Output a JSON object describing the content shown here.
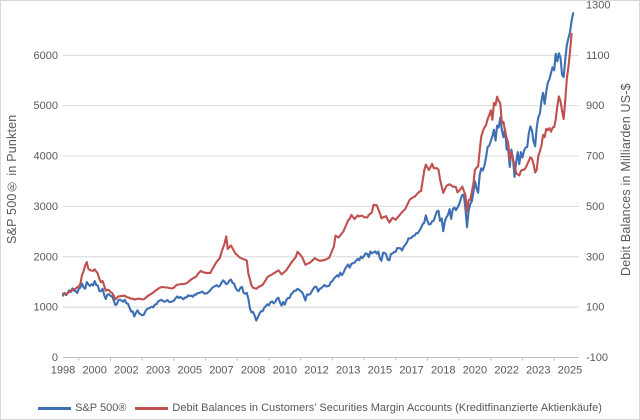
{
  "chart_data": {
    "type": "line",
    "title": "",
    "grid": true,
    "legend_position": "bottom",
    "x_axis": {
      "labels": [
        "1998",
        "2000",
        "2002",
        "2003",
        "2005",
        "2007",
        "2008",
        "2010",
        "2012",
        "2013",
        "2015",
        "2017",
        "2018",
        "2020",
        "2022",
        "2023",
        "2025"
      ],
      "range_years": [
        1998.96,
        2026.1
      ],
      "label_interval_months": 20
    },
    "y_left": {
      "label": "S&P 500® in Punkten",
      "ticks": [
        0,
        1000,
        2000,
        3000,
        4000,
        5000,
        6000
      ],
      "range": [
        0,
        7000
      ]
    },
    "y_right": {
      "label": "Debit Balances in Milliarden US-$",
      "ticks": [
        -100,
        100,
        300,
        500,
        700,
        900,
        1100,
        1300
      ],
      "range": [
        -100,
        1300
      ]
    },
    "series": [
      {
        "name": "S&P 500®",
        "slug": "sp500",
        "axis": "left",
        "color": "#3e6fb5",
        "start_year": 1998.96,
        "interval_months": 1,
        "values": [
          1229,
          1280,
          1238,
          1286,
          1335,
          1302,
          1373,
          1329,
          1320,
          1283,
          1363,
          1389,
          1469,
          1394,
          1366,
          1499,
          1452,
          1421,
          1455,
          1431,
          1518,
          1437,
          1429,
          1315,
          1320,
          1366,
          1240,
          1160,
          1249,
          1256,
          1224,
          1211,
          1134,
          1041,
          1060,
          1139,
          1148,
          1130,
          1107,
          1147,
          1077,
          1067,
          990,
          912,
          916,
          815,
          886,
          936,
          880,
          856,
          841,
          848,
          917,
          964,
          975,
          990,
          1008,
          996,
          1051,
          1058,
          1112,
          1131,
          1145,
          1126,
          1107,
          1121,
          1141,
          1102,
          1104,
          1114,
          1130,
          1174,
          1212,
          1181,
          1204,
          1181,
          1157,
          1192,
          1191,
          1234,
          1220,
          1229,
          1207,
          1249,
          1248,
          1280,
          1281,
          1295,
          1311,
          1270,
          1270,
          1277,
          1304,
          1336,
          1378,
          1401,
          1418,
          1438,
          1407,
          1421,
          1482,
          1531,
          1503,
          1455,
          1474,
          1527,
          1549,
          1481,
          1468,
          1379,
          1331,
          1323,
          1386,
          1400,
          1280,
          1267,
          1283,
          1166,
          969,
          896,
          903,
          826,
          735,
          798,
          873,
          919,
          919,
          987,
          1021,
          1057,
          1036,
          1096,
          1115,
          1074,
          1104,
          1169,
          1187,
          1089,
          1031,
          1102,
          1049,
          1141,
          1183,
          1181,
          1258,
          1286,
          1327,
          1326,
          1364,
          1345,
          1321,
          1292,
          1219,
          1131,
          1253,
          1247,
          1258,
          1312,
          1366,
          1408,
          1398,
          1310,
          1362,
          1379,
          1407,
          1441,
          1412,
          1416,
          1426,
          1498,
          1515,
          1569,
          1598,
          1631,
          1606,
          1686,
          1633,
          1682,
          1757,
          1806,
          1848,
          1783,
          1859,
          1872,
          1884,
          1924,
          1960,
          1931,
          2003,
          1972,
          2018,
          2068,
          2059,
          1995,
          2105,
          2068,
          2086,
          2107,
          2063,
          2104,
          1972,
          1920,
          2079,
          2080,
          2044,
          1940,
          1932,
          2060,
          2065,
          2097,
          2099,
          2174,
          2171,
          2168,
          2126,
          2199,
          2239,
          2279,
          2364,
          2363,
          2384,
          2412,
          2423,
          2470,
          2472,
          2519,
          2575,
          2648,
          2674,
          2824,
          2714,
          2641,
          2648,
          2705,
          2718,
          2816,
          2902,
          2914,
          2712,
          2760,
          2507,
          2704,
          2784,
          2834,
          2946,
          2752,
          2942,
          2980,
          2926,
          2977,
          3038,
          3141,
          3231,
          3226,
          2954,
          2585,
          2912,
          3044,
          3100,
          3271,
          3500,
          3363,
          3270,
          3622,
          3756,
          3714,
          3811,
          3973,
          4181,
          4204,
          4298,
          4395,
          4523,
          4308,
          4605,
          4567,
          4766,
          4516,
          4374,
          4530,
          4132,
          4132,
          3785,
          4130,
          3955,
          3586,
          3872,
          4080,
          3840,
          4077,
          3970,
          4109,
          4169,
          4180,
          4450,
          4589,
          4508,
          4288,
          4194,
          4568,
          4770,
          4846,
          5096,
          5254,
          5036,
          5278,
          5460,
          5522,
          5648,
          5762,
          5705,
          6032,
          5882,
          6041,
          5955,
          5612,
          5569,
          5912,
          6205,
          6339,
          6460,
          6688,
          6840
        ]
      },
      {
        "name": "Debit Balances in Customers' Securities Margin Accounts (Kreditfinanzierte Aktienkäufe)",
        "slug": "debit-balances",
        "axis": "right",
        "color": "#c0504d",
        "start_year": 1998.96,
        "interval_months": 1,
        "values": [
          154,
          153,
          151,
          156,
          161,
          164,
          168,
          171,
          174,
          179,
          182,
          194,
          228,
          243,
          265,
          279,
          252,
          248,
          245,
          244,
          250,
          241,
          233,
          211,
          199,
          204,
          186,
          165,
          169,
          168,
          160,
          156,
          146,
          131,
          136,
          143,
          143,
          145,
          144,
          146,
          140,
          139,
          137,
          133,
          134,
          130,
          132,
          133,
          134,
          132,
          131,
          131,
          136,
          142,
          146,
          150,
          154,
          158,
          164,
          168,
          173,
          177,
          179,
          180,
          179,
          178,
          178,
          176,
          175,
          174,
          178,
          184,
          189,
          190,
          191,
          192,
          191,
          193,
          195,
          200,
          205,
          211,
          214,
          218,
          221,
          230,
          238,
          244,
          240,
          238,
          236,
          236,
          236,
          236,
          248,
          259,
          270,
          280,
          288,
          295,
          318,
          336,
          353,
          381,
          331,
          338,
          345,
          334,
          322,
          312,
          306,
          300,
          295,
          293,
          290,
          288,
          285,
          233,
          210,
          186,
          177,
          175,
          173,
          178,
          182,
          185,
          188,
          198,
          208,
          219,
          223,
          227,
          230,
          234,
          238,
          242,
          246,
          238,
          230,
          236,
          241,
          247,
          257,
          266,
          276,
          284,
          292,
          300,
          320,
          313,
          306,
          298,
          283,
          268,
          272,
          274,
          277,
          283,
          289,
          295,
          290,
          287,
          284,
          285,
          286,
          287,
          290,
          293,
          296,
          311,
          326,
          342,
          384,
          380,
          377,
          385,
          393,
          401,
          416,
          430,
          445,
          451,
          466,
          458,
          450,
          457,
          464,
          460,
          463,
          463,
          457,
          457,
          456,
          466,
          471,
          476,
          507,
          505,
          505,
          489,
          473,
          453,
          457,
          459,
          461,
          447,
          436,
          446,
          455,
          451,
          447,
          455,
          462,
          470,
          477,
          484,
          490,
          503,
          516,
          528,
          532,
          536,
          539,
          546,
          553,
          559,
          561,
          602,
          643,
          666,
          655,
          645,
          657,
          669,
          652,
          652,
          652,
          646,
          607,
          580,
          554,
          568,
          581,
          585,
          588,
          584,
          579,
          578,
          577,
          556,
          562,
          570,
          579,
          562,
          545,
          479,
          525,
          525,
          557,
          588,
          645,
          654,
          659,
          722,
          778,
          799,
          814,
          823,
          847,
          862,
          882,
          844,
          911,
          903,
          936,
          919,
          910,
          830,
          836,
          800,
          773,
          753,
          683,
          714,
          688,
          664,
          633,
          627,
          623,
          641,
          645,
          646,
          653,
          667,
          681,
          695,
          689,
          668,
          635,
          646,
          701,
          719,
          742,
          784,
          775,
          809,
          803,
          811,
          797,
          813,
          815,
          846,
          899,
          937,
          918,
          880,
          847,
          921,
          1008,
          1053,
          1114,
          1185
        ]
      }
    ],
    "colors": {
      "gridline": "#d9d9d9",
      "axis_line": "#bfbfbf",
      "tick_label": "#595959",
      "background": "#ffffff"
    }
  }
}
